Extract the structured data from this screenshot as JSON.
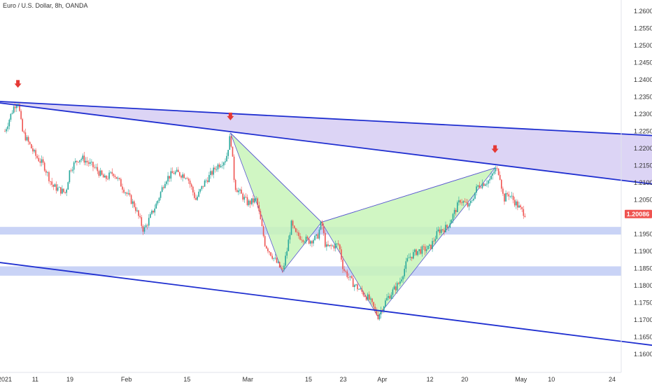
{
  "header": {
    "symbol_label": "Euro / U.S. Dollar, 8h, OANDA"
  },
  "colors": {
    "up": "#26a69a",
    "down": "#ef5350",
    "trendline": "#1f2fd0",
    "channel_fill": "#d6cdf3",
    "harmonic_fill": "#c8f5b8",
    "harmonic_stroke": "#5a5ad0",
    "zone_fill": "#c9d3f6",
    "arrow": "#e53935",
    "price_badge": "#ef5350"
  },
  "chart_data": {
    "type": "candlestick",
    "title": "Euro / U.S. Dollar, 8h, OANDA",
    "xlabel": "",
    "ylabel": "",
    "ylim": [
      1.1575,
      1.2633
    ],
    "x_ticks": [
      "2021",
      "11",
      "19",
      "Feb",
      "15",
      "Mar",
      "15",
      "23",
      "Apr",
      "12",
      "20",
      "May",
      "10",
      "24"
    ],
    "x_tick_dates": [
      "2021-01-04",
      "2021-01-11",
      "2021-01-19",
      "2021-02-01",
      "2021-02-15",
      "2021-03-01",
      "2021-03-15",
      "2021-03-23",
      "2021-04-01",
      "2021-04-12",
      "2021-04-20",
      "2021-05-03",
      "2021-05-10",
      "2021-05-24"
    ],
    "y_ticks": [
      "1.26000",
      "1.25500",
      "1.25000",
      "1.24500",
      "1.24000",
      "1.23500",
      "1.23000",
      "1.22500",
      "1.22000",
      "1.21500",
      "1.21000",
      "1.20500",
      "1.19500",
      "1.19000",
      "1.18500",
      "1.18000",
      "1.17500",
      "1.17000",
      "1.16500",
      "1.16000"
    ],
    "last_price": "1.20086",
    "price_path": [
      [
        "2021-01-04",
        1.225
      ],
      [
        "2021-01-06",
        1.232
      ],
      [
        "2021-01-07",
        1.234
      ],
      [
        "2021-01-08",
        1.225
      ],
      [
        "2021-01-11",
        1.218
      ],
      [
        "2021-01-13",
        1.215
      ],
      [
        "2021-01-15",
        1.209
      ],
      [
        "2021-01-18",
        1.207
      ],
      [
        "2021-01-19",
        1.214
      ],
      [
        "2021-01-21",
        1.217
      ],
      [
        "2021-01-22",
        1.217
      ],
      [
        "2021-01-25",
        1.214
      ],
      [
        "2021-01-27",
        1.211
      ],
      [
        "2021-01-29",
        1.213
      ],
      [
        "2021-02-01",
        1.207
      ],
      [
        "2021-02-03",
        1.203
      ],
      [
        "2021-02-05",
        1.196
      ],
      [
        "2021-02-08",
        1.204
      ],
      [
        "2021-02-10",
        1.211
      ],
      [
        "2021-02-12",
        1.213
      ],
      [
        "2021-02-15",
        1.212
      ],
      [
        "2021-02-17",
        1.205
      ],
      [
        "2021-02-19",
        1.21
      ],
      [
        "2021-02-22",
        1.215
      ],
      [
        "2021-02-24",
        1.217
      ],
      [
        "2021-02-25",
        1.224
      ],
      [
        "2021-02-26",
        1.209
      ],
      [
        "2021-03-01",
        1.204
      ],
      [
        "2021-03-03",
        1.205
      ],
      [
        "2021-03-05",
        1.192
      ],
      [
        "2021-03-09",
        1.184
      ],
      [
        "2021-03-10",
        1.19
      ],
      [
        "2021-03-11",
        1.198
      ],
      [
        "2021-03-12",
        1.195
      ],
      [
        "2021-03-15",
        1.193
      ],
      [
        "2021-03-17",
        1.194
      ],
      [
        "2021-03-18",
        1.1985
      ],
      [
        "2021-03-19",
        1.191
      ],
      [
        "2021-03-22",
        1.192
      ],
      [
        "2021-03-23",
        1.185
      ],
      [
        "2021-03-25",
        1.181
      ],
      [
        "2021-03-29",
        1.176
      ],
      [
        "2021-03-31",
        1.171
      ],
      [
        "2021-04-02",
        1.176
      ],
      [
        "2021-04-05",
        1.181
      ],
      [
        "2021-04-07",
        1.188
      ],
      [
        "2021-04-09",
        1.19
      ],
      [
        "2021-04-12",
        1.191
      ],
      [
        "2021-04-14",
        1.196
      ],
      [
        "2021-04-16",
        1.197
      ],
      [
        "2021-04-19",
        1.205
      ],
      [
        "2021-04-21",
        1.203
      ],
      [
        "2021-04-23",
        1.209
      ],
      [
        "2021-04-26",
        1.211
      ],
      [
        "2021-04-27",
        1.214
      ],
      [
        "2021-04-28",
        1.213
      ],
      [
        "2021-04-29",
        1.205
      ],
      [
        "2021-04-30",
        1.207
      ],
      [
        "2021-05-03",
        1.202
      ],
      [
        "2021-05-04",
        1.2009
      ]
    ],
    "channel_upper": [
      [
        "2020-12-29",
        1.234
      ],
      [
        "2021-06-06",
        1.209
      ]
    ],
    "channel_upper_top": [
      [
        "2020-12-29",
        1.234
      ],
      [
        "2021-06-06",
        1.2235
      ]
    ],
    "channel_lower": [
      [
        "2020-12-29",
        1.1875
      ],
      [
        "2021-06-06",
        1.162
      ]
    ],
    "support_zones": [
      [
        1.1955,
        1.1965
      ],
      [
        1.1835,
        1.185
      ]
    ],
    "harmonic_points": [
      [
        "2021-02-25",
        1.2245
      ],
      [
        "2021-03-09",
        1.184
      ],
      [
        "2021-03-18",
        1.1985
      ],
      [
        "2021-03-31",
        1.171
      ],
      [
        "2021-04-27",
        1.2143
      ]
    ],
    "markers": [
      [
        "2021-01-07",
        1.2385
      ],
      [
        "2021-02-25",
        1.229
      ],
      [
        "2021-04-27",
        1.2195
      ]
    ],
    "grid": false,
    "legend": "none"
  }
}
